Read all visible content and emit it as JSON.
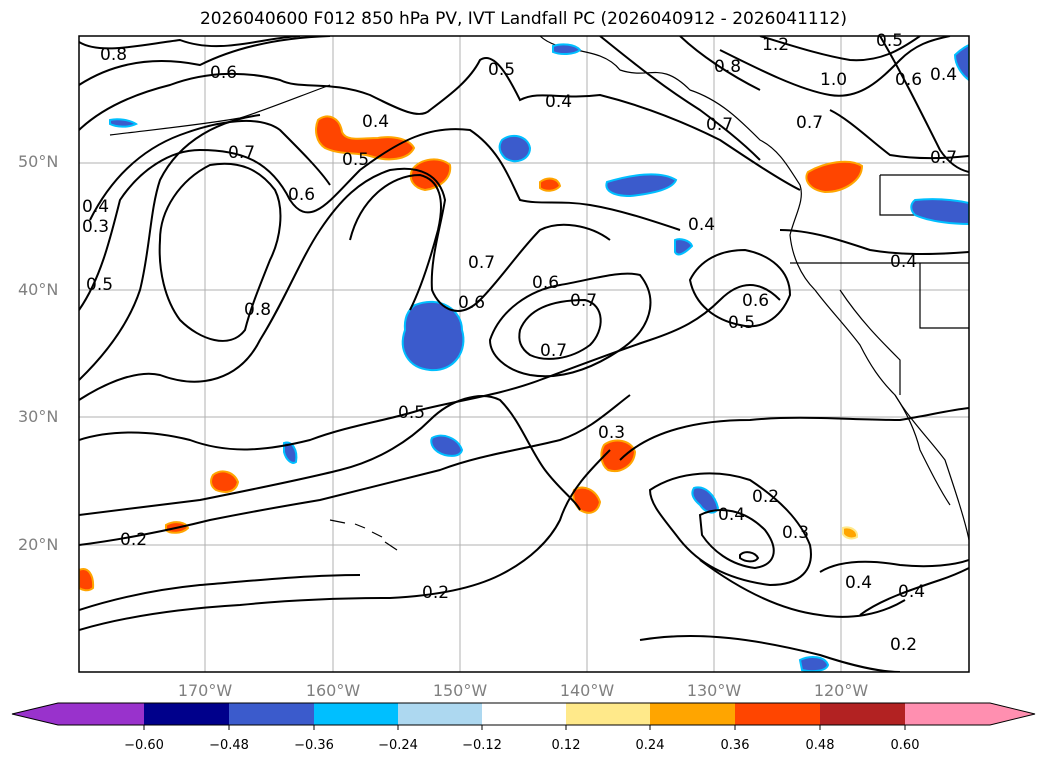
{
  "title": "2026040600 F012 850 hPa PV, IVT Landfall PC (2026040912 - 2026041112)",
  "lat_labels": [
    "50°N",
    "40°N",
    "30°N",
    "20°N"
  ],
  "lon_labels": [
    "170°W",
    "160°W",
    "150°W",
    "140°W",
    "130°W",
    "120°W"
  ],
  "contour_labels": [
    "0.8",
    "0.6",
    "0.7",
    "0.5",
    "0.4",
    "0.4",
    "0.5",
    "1.2",
    "0.8",
    "1.0",
    "0.5",
    "0.6",
    "0.4",
    "0.7",
    "0.7",
    "0.7",
    "0.6",
    "0.3",
    "0.4",
    "0.5",
    "0.8",
    "0.7",
    "0.6",
    "0.6",
    "0.7",
    "0.7",
    "0.4",
    "0.6",
    "0.5",
    "0.4",
    "0.5",
    "0.3",
    "0.2",
    "0.4",
    "0.3",
    "0.2",
    "0.4",
    "0.4",
    "0.2",
    "0.2"
  ],
  "colorbar": {
    "ticks": [
      "−0.60",
      "−0.48",
      "−0.36",
      "−0.24",
      "−0.12",
      "0.12",
      "0.24",
      "0.36",
      "0.48",
      "0.60"
    ],
    "colors": [
      "#9932cc",
      "#00008b",
      "#3b5bcc",
      "#00bfff",
      "#add8f0",
      "#ffffff",
      "#ffe98a",
      "#ffa500",
      "#ff4500",
      "#b22222",
      "#ff8fb0"
    ]
  }
}
